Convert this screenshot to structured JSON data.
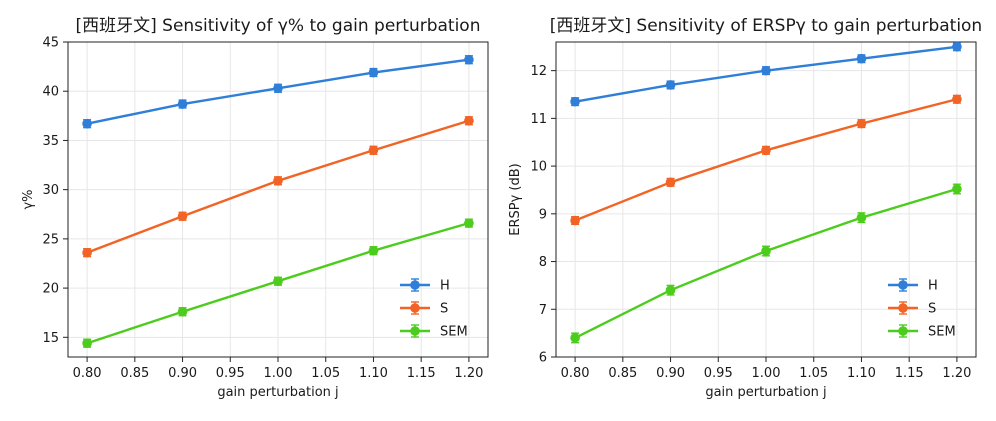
{
  "chart_data": [
    {
      "type": "line",
      "title": "[西班牙文] Sensitivity of γ% to gain perturbation",
      "xlabel": "gain perturbation j",
      "ylabel": "γ%",
      "x": [
        0.8,
        0.9,
        1.0,
        1.1,
        1.2
      ],
      "xlim": [
        0.78,
        1.22
      ],
      "ylim": [
        13,
        45
      ],
      "xticks": [
        0.8,
        0.85,
        0.9,
        0.95,
        1.0,
        1.05,
        1.1,
        1.15,
        1.2
      ],
      "xtick_labels": [
        "0.80",
        "0.85",
        "0.90",
        "0.95",
        "1.00",
        "1.05",
        "1.10",
        "1.15",
        "1.20"
      ],
      "yticks": [
        15,
        20,
        25,
        30,
        35,
        40,
        45
      ],
      "ytick_labels": [
        "15",
        "20",
        "25",
        "30",
        "35",
        "40",
        "45"
      ],
      "grid": true,
      "legend": "lower-right",
      "series": [
        {
          "name": "H",
          "color": "#2f7fd8",
          "values": [
            36.7,
            38.7,
            40.3,
            41.9,
            43.2
          ],
          "err": [
            0.4,
            0.4,
            0.4,
            0.4,
            0.4
          ]
        },
        {
          "name": "S",
          "color": "#f26426",
          "values": [
            23.6,
            27.3,
            30.9,
            34.0,
            37.0
          ],
          "err": [
            0.4,
            0.4,
            0.4,
            0.4,
            0.4
          ]
        },
        {
          "name": "SEM",
          "color": "#4ccc1c",
          "values": [
            14.4,
            17.6,
            20.7,
            23.8,
            26.6
          ],
          "err": [
            0.4,
            0.4,
            0.4,
            0.4,
            0.4
          ]
        }
      ]
    },
    {
      "type": "line",
      "title": "[西班牙文] Sensitivity of ERSPγ to gain perturbation",
      "xlabel": "gain perturbation j",
      "ylabel": "ERSPγ (dB)",
      "x": [
        0.8,
        0.9,
        1.0,
        1.1,
        1.2
      ],
      "xlim": [
        0.78,
        1.22
      ],
      "ylim": [
        6,
        12.6
      ],
      "xticks": [
        0.8,
        0.85,
        0.9,
        0.95,
        1.0,
        1.05,
        1.1,
        1.15,
        1.2
      ],
      "xtick_labels": [
        "0.80",
        "0.85",
        "0.90",
        "0.95",
        "1.00",
        "1.05",
        "1.10",
        "1.15",
        "1.20"
      ],
      "yticks": [
        6,
        7,
        8,
        9,
        10,
        11,
        12
      ],
      "ytick_labels": [
        "6",
        "7",
        "8",
        "9",
        "10",
        "11",
        "12"
      ],
      "grid": true,
      "legend": "lower-right",
      "series": [
        {
          "name": "H",
          "color": "#2f7fd8",
          "values": [
            11.35,
            11.7,
            12.0,
            12.25,
            12.5
          ],
          "err": [
            0.08,
            0.08,
            0.08,
            0.08,
            0.08
          ]
        },
        {
          "name": "S",
          "color": "#f26426",
          "values": [
            8.86,
            9.66,
            10.33,
            10.89,
            11.4
          ],
          "err": [
            0.08,
            0.08,
            0.08,
            0.08,
            0.08
          ]
        },
        {
          "name": "SEM",
          "color": "#4ccc1c",
          "values": [
            6.4,
            7.4,
            8.22,
            8.92,
            9.52
          ],
          "err": [
            0.1,
            0.1,
            0.1,
            0.1,
            0.1
          ]
        }
      ]
    }
  ]
}
